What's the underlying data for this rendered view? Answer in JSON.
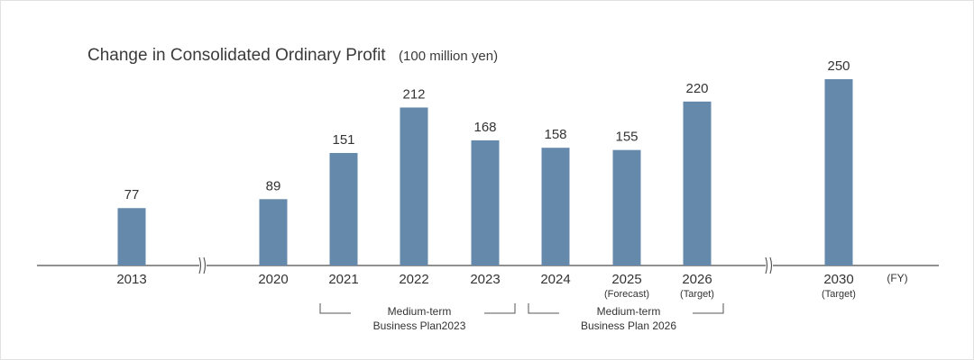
{
  "chart_data": {
    "type": "bar",
    "title": "Change in Consolidated Ordinary Profit",
    "unit": "(100 million yen)",
    "x_unit": "(FY)",
    "categories": [
      "2013",
      "2020",
      "2021",
      "2022",
      "2023",
      "2024",
      "2025",
      "2026",
      "2030"
    ],
    "sublabels": [
      "",
      "",
      "",
      "",
      "",
      "",
      "(Forecast)",
      "(Target)",
      "(Target)"
    ],
    "values": [
      77,
      89,
      151,
      212,
      168,
      158,
      155,
      220,
      250
    ],
    "ylim": [
      0,
      250
    ],
    "bar_color": "#6589ab",
    "axis_breaks_after": [
      "2013",
      "2026"
    ],
    "annotations": [
      {
        "text_line1": "Medium-term",
        "text_line2": "Business Plan2023",
        "span": [
          "2021",
          "2023"
        ]
      },
      {
        "text_line1": "Medium-term",
        "text_line2": "Business Plan 2026",
        "span": [
          "2024",
          "2026"
        ]
      }
    ]
  }
}
